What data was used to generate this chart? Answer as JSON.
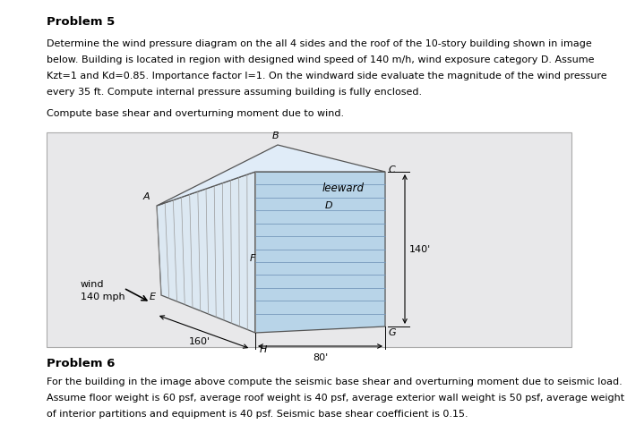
{
  "title": "Problem 5",
  "problem5_text": [
    "Determine the wind pressure diagram on the all 4 sides and the roof of the 10-story building shown in image",
    "below. Building is located in region with designed wind speed of 140 m/h, wind exposure category D. Assume",
    "Kzt=1 and Kd=0.85. Importance factor I=1. On the windward side evaluate the magnitude of the wind pressure",
    "every 35 ft. Compute internal pressure assuming building is fully enclosed."
  ],
  "subtitle": "Compute base shear and overturning moment due to wind.",
  "problem6_title": "Problem 6",
  "problem6_text": [
    "For the building in the image above compute the seismic base shear and overturning moment due to seismic load.",
    "Assume floor weight is 60 psf, average roof weight is 40 psf, average exterior wall weight is 50 psf, average weight",
    "of interior partitions and equipment is 40 psf. Seismic base shear coefficient is 0.15."
  ],
  "bg_color": "#e8e8e8",
  "page_bg": "#ffffff",
  "building_front_color": "#b8d4e8",
  "building_top_color": "#ddeeff",
  "building_windward_color": "#d4e4f0",
  "hatch_color": "#888888",
  "line_color": "#555555"
}
